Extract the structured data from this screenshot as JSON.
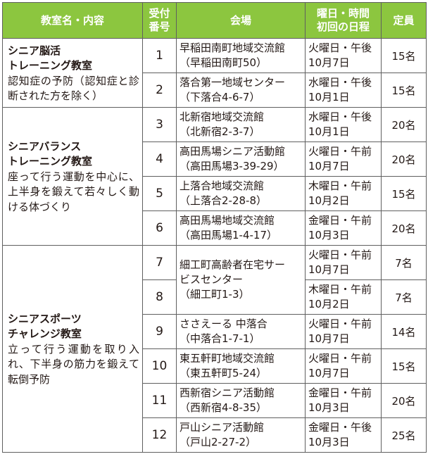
{
  "table": {
    "headers": {
      "course": "教室名・内容",
      "number": [
        "受付",
        "番号"
      ],
      "venue": "会場",
      "schedule": [
        "曜日・時間",
        "初回の日程"
      ],
      "capacity": "定員"
    },
    "courses": [
      {
        "name": [
          "シニア脳活",
          "トレーニング教室"
        ],
        "description": "認知症の予防（認知症と診断された方を除く）",
        "rows": [
          {
            "no": "1",
            "venue": [
              "早稲田南町地域交流館",
              "（早稲田南町50）"
            ],
            "schedule": [
              "火曜日・午後",
              "10月7日"
            ],
            "capacity": "15名"
          },
          {
            "no": "2",
            "venue": [
              "落合第一地域センター",
              "（下落合4-6-7）"
            ],
            "schedule": [
              "水曜日・午後",
              "10月1日"
            ],
            "capacity": "15名"
          }
        ]
      },
      {
        "name": [
          "シニアバランス",
          "トレーニング教室"
        ],
        "description": "座って行う運動を中心に、上半身を鍛えて若々しく動ける体づくり",
        "rows": [
          {
            "no": "3",
            "venue": [
              "北新宿地域交流館",
              "（北新宿2-3-7）"
            ],
            "schedule": [
              "水曜日・午後",
              "10月1日"
            ],
            "capacity": "20名"
          },
          {
            "no": "4",
            "venue": [
              "高田馬場シニア活動館",
              "（高田馬場3-39-29）"
            ],
            "schedule": [
              "火曜日・午前",
              "10月7日"
            ],
            "capacity": "20名"
          },
          {
            "no": "5",
            "venue": [
              "上落合地域交流館",
              "（上落合2-28-8）"
            ],
            "schedule": [
              "木曜日・午前",
              "10月2日"
            ],
            "capacity": "15名"
          },
          {
            "no": "6",
            "venue": [
              "高田馬場地域交流館",
              "（高田馬場1-4-17）"
            ],
            "schedule": [
              "金曜日・午前",
              "10月3日"
            ],
            "capacity": "20名"
          }
        ]
      },
      {
        "name": [
          "シニアスポーツ",
          "チャレンジ教室"
        ],
        "description": "立って行う運動を取り入れ、下半身の筋力を鍛えて転倒予防",
        "rows": [
          {
            "no": "7",
            "venue": [
              "細工町高齢者在宅サー",
              "ビスセンター",
              "（細工町1-3）"
            ],
            "venue_rowspan": 2,
            "schedule": [
              "火曜日・午前",
              "10月7日"
            ],
            "capacity": "7名"
          },
          {
            "no": "8",
            "schedule": [
              "木曜日・午前",
              "10月2日"
            ],
            "capacity": "7名"
          },
          {
            "no": "9",
            "venue": [
              "ささえーる 中落合",
              "（中落合1-7-1）"
            ],
            "schedule": [
              "火曜日・午前",
              "10月7日"
            ],
            "capacity": "14名"
          },
          {
            "no": "10",
            "venue": [
              "東五軒町地域交流館",
              "（東五軒町5-24）"
            ],
            "schedule": [
              "火曜日・午前",
              "10月7日"
            ],
            "capacity": "15名"
          },
          {
            "no": "11",
            "venue": [
              "西新宿シニア活動館",
              "（西新宿4-8-35）"
            ],
            "schedule": [
              "金曜日・午前",
              "10月3日"
            ],
            "capacity": "20名"
          },
          {
            "no": "12",
            "venue": [
              "戸山シニア活動館",
              "（戸山2-27-2）"
            ],
            "schedule": [
              "金曜日・午後",
              "10月3日"
            ],
            "capacity": "25名"
          }
        ]
      }
    ]
  }
}
